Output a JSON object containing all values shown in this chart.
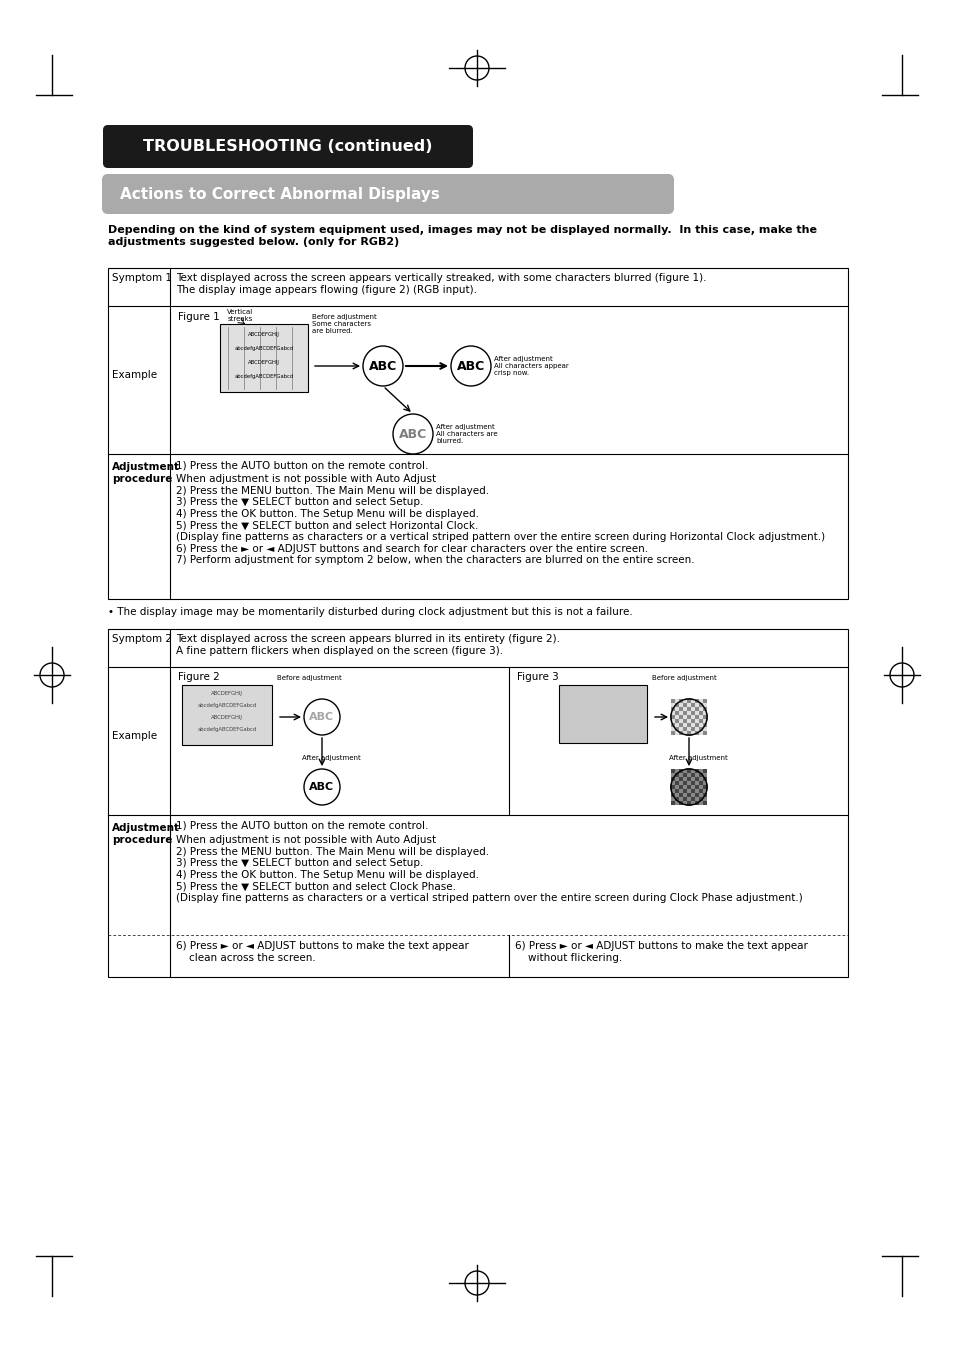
{
  "page_bg": "#ffffff",
  "title_bg": "#1a1a1a",
  "title_text": "TROUBLESHOOTING (continued)",
  "title_text_color": "#ffffff",
  "subtitle_bg": "#aaaaaa",
  "subtitle_text": "Actions to Correct Abnormal Displays",
  "subtitle_text_color": "#ffffff",
  "intro_bold": "Depending on the kind of system equipment used, images may not be displayed normally.  In this case, make the\nadjustments suggested below. (only for RGB2)",
  "symptom1_label": "Symptom 1",
  "symptom1_text": "Text displayed across the screen appears vertically streaked, with some characters blurred (figure 1).\nThe display image appears flowing (figure 2) (RGB input).",
  "example_label": "Example",
  "figure1_label": "Figure 1",
  "adj1_label": "Adjustment\nprocedure",
  "adj1_text_line1": "1) Press the AUTO button on the remote control.",
  "adj1_text_body": "When adjustment is not possible with Auto Adjust\n2) Press the MENU button. The Main Menu will be displayed.\n3) Press the ▼ SELECT button and select Setup.\n4) Press the OK button. The Setup Menu will be displayed.\n5) Press the ▼ SELECT button and select Horizontal Clock.\n(Display fine patterns as characters or a vertical striped pattern over the entire screen during Horizontal Clock adjustment.)\n6) Press the ► or ◄ ADJUST buttons and search for clear characters over the entire screen.\n7) Perform adjustment for symptom 2 below, when the characters are blurred on the entire screen.",
  "note1": "• The display image may be momentarily disturbed during clock adjustment but this is not a failure.",
  "symptom2_label": "Symptom 2",
  "symptom2_text": "Text displayed across the screen appears blurred in its entirety (figure 2).\nA fine pattern flickers when displayed on the screen (figure 3).",
  "figure2_label": "Figure 2",
  "figure3_label": "Figure 3",
  "adj2_label": "Adjustment\nprocedure",
  "adj2_text_line1": "1) Press the AUTO button on the remote control.",
  "adj2_text_body": "When adjustment is not possible with Auto Adjust\n2) Press the MENU button. The Main Menu will be displayed.\n3) Press the ▼ SELECT button and select Setup.\n4) Press the OK button. The Setup Menu will be displayed.\n5) Press the ▼ SELECT button and select Clock Phase.\n(Display fine patterns as characters or a vertical striped pattern over the entire screen during Clock Phase adjustment.)",
  "adj2_col1": "6) Press ► or ◄ ADJUST buttons to make the text appear\n    clean across the screen.",
  "adj2_col2": "6) Press ► or ◄ ADJUST buttons to make the text appear\n    without flickering."
}
